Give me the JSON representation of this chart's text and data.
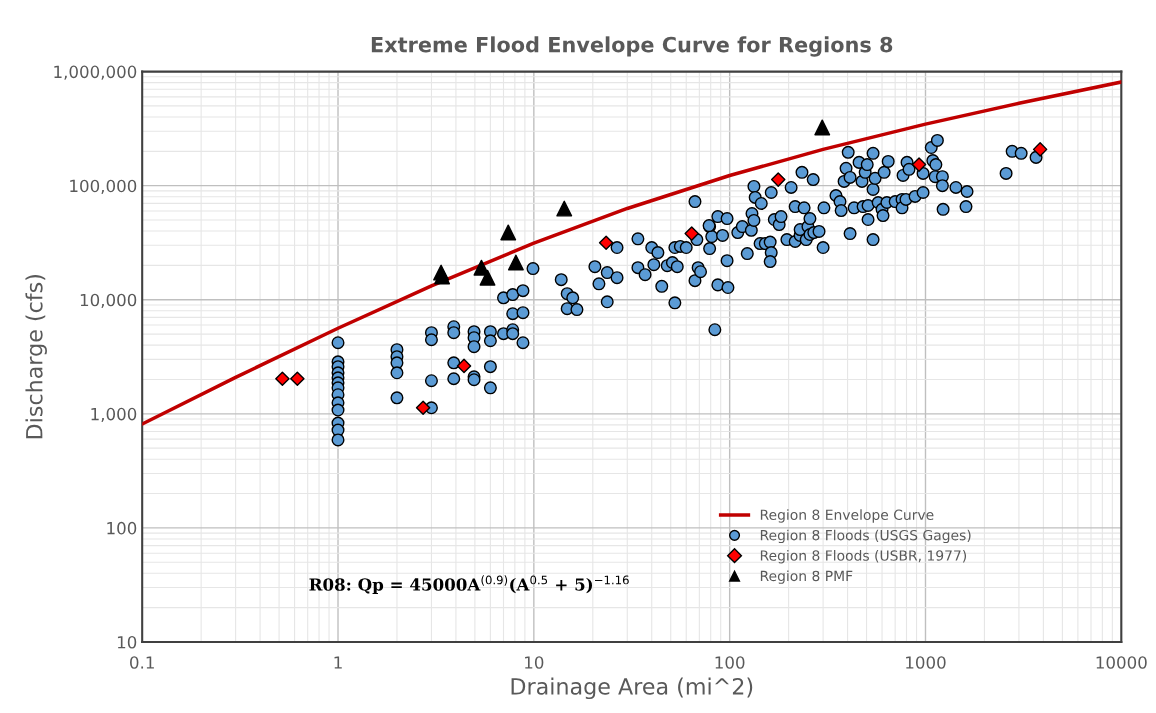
{
  "chart_data": {
    "type": "scatter",
    "title": "Extreme Flood Envelope Curve for Regions 8",
    "xlabel": "Drainage Area (mi^2)",
    "ylabel": "Discharge (cfs)",
    "log": "xy",
    "grid": true,
    "legend": "bottom right",
    "xlim": [
      0.1,
      10000
    ],
    "xticks": [
      0.1,
      1,
      10,
      100,
      1000,
      10000
    ],
    "ylim": [
      10,
      1000000
    ],
    "yticks": [
      {
        "value": 10,
        "label": "10"
      },
      {
        "value": 100,
        "label": "100"
      },
      {
        "value": 1000,
        "label": "1,000"
      },
      {
        "value": 10000,
        "label": "10,000"
      },
      {
        "value": 100000,
        "label": "100,000"
      },
      {
        "value": 1000000,
        "label": "1,000,000"
      }
    ],
    "annotations": [
      "R08: Qp = 45000A$^{(0.9)}$(A$^{0.5}$ + 5)$^{−1.16}$"
    ],
    "series": [
      {
        "name": "Region 8 Envelope Curve",
        "type": "line",
        "color": "#c00000",
        "marker": "none",
        "line_style": "solid",
        "x": [
          0.1,
          0.3,
          1,
          3,
          10,
          30,
          100,
          300,
          1000,
          3000,
          10000
        ],
        "values": [
          814,
          2089,
          5630,
          13245,
          31310,
          63086,
          122750,
          207970,
          346200,
          527400,
          810500
        ]
      },
      {
        "name": "Region 8 Floods (USGS Gages)",
        "type": "scatter",
        "color": "#5b9bd5",
        "marker": "circle",
        "x": [
          1,
          1,
          1,
          1,
          1,
          1,
          1,
          1,
          1,
          1,
          1,
          1,
          1,
          2,
          2,
          2,
          2,
          2,
          3,
          3,
          3,
          3,
          3.9,
          3.9,
          3.9,
          3.9,
          4.95,
          4.95,
          4.95,
          4.95,
          4.95,
          6,
          6,
          6,
          6,
          7,
          7,
          7.8,
          7.8,
          7.8,
          7.8,
          8.8,
          8.8,
          8.8,
          9.9,
          13.8,
          14.8,
          15.8,
          14.8,
          16.6,
          20.5,
          21.5,
          23.7,
          23.7,
          26.6,
          26.6,
          34,
          34,
          37,
          40,
          43,
          41,
          45,
          48,
          51,
          52.5,
          52.5,
          54,
          56,
          60,
          66.5,
          66.5,
          68,
          69,
          71,
          79,
          79,
          81,
          84,
          87,
          87,
          92,
          78.5,
          97,
          97,
          98,
          110,
          116,
          123,
          129,
          130,
          133,
          133,
          135,
          145,
          143,
          152,
          161,
          163,
          161,
          163,
          169,
          179,
          183,
          196,
          206,
          216,
          216,
          229,
          234,
          240,
          229,
          246,
          251,
          257,
          257,
          267,
          269,
          286,
          300,
          303,
          349,
          366,
          371,
          384,
          393,
          403,
          412,
          412,
          432,
          458,
          474,
          480,
          492,
          504,
          509,
          509,
          540,
          540,
          540,
          553,
          573,
          600,
          607,
          615,
          645,
          635,
          700,
          759,
          759,
          768,
          795,
          805,
          824,
          885,
          972,
          972,
          1070,
          1150,
          1090,
          1130,
          1120,
          1220,
          1220,
          1230,
          1430,
          1630,
          1610,
          2580,
          2770,
          3080,
          3670
        ],
        "values": [
          4200,
          2860,
          2590,
          2290,
          2070,
          1870,
          1690,
          1470,
          1250,
          1080,
          830,
          720,
          590,
          3650,
          3170,
          2800,
          2290,
          1380,
          5140,
          4460,
          1950,
          1130,
          5800,
          5140,
          2800,
          2030,
          5250,
          4650,
          3880,
          2110,
          1990,
          5250,
          4370,
          2590,
          1690,
          10400,
          5040,
          11100,
          7540,
          5460,
          5040,
          12000,
          7700,
          4200,
          18750,
          15000,
          11300,
          10400,
          8350,
          8200,
          19500,
          13800,
          17300,
          9600,
          28700,
          15600,
          34200,
          19100,
          16600,
          28700,
          25900,
          20300,
          13100,
          19900,
          21200,
          28700,
          9400,
          19500,
          29300,
          28700,
          14700,
          72600,
          33700,
          19100,
          17600,
          43800,
          28100,
          35800,
          5460,
          53600,
          13500,
          36600,
          44700,
          51500,
          22000,
          12800,
          38800,
          43800,
          25400,
          40600,
          57000,
          49600,
          98400,
          78800,
          69800,
          31100,
          31100,
          32000,
          25900,
          21600,
          87100,
          50500,
          45600,
          53600,
          33700,
          96400,
          65600,
          32400,
          36600,
          131000,
          64000,
          41200,
          33700,
          43800,
          51500,
          37300,
          113000,
          38800,
          39700,
          28700,
          64000,
          82000,
          72600,
          60500,
          109000,
          142000,
          196000,
          118000,
          38000,
          64000,
          160000,
          109000,
          65600,
          131000,
          153000,
          50500,
          67000,
          92700,
          192000,
          33700,
          116000,
          71200,
          62000,
          54700,
          131000,
          163000,
          71200,
          72600,
          75700,
          64000,
          123000,
          75700,
          160000,
          139000,
          80400,
          87100,
          128000,
          216000,
          249000,
          166000,
          153000,
          120000,
          120000,
          100000,
          62000,
          96400,
          88900,
          65600,
          128000,
          200000,
          192000,
          177000
        ]
      },
      {
        "name": "Region 8 Floods (USBR, 1977)",
        "type": "scatter",
        "color": "#ff0000",
        "marker": "diamond",
        "x": [
          0.52,
          0.62,
          2.72,
          4.4,
          23.4,
          64,
          177,
          927,
          3850
        ],
        "values": [
          2030,
          2030,
          1130,
          2630,
          31600,
          38000,
          113000,
          153000,
          208000
        ]
      },
      {
        "name": "Region 8 PMF",
        "type": "scatter",
        "color": "#000000",
        "marker": "triangle",
        "x": [
          3.36,
          3.4,
          5.4,
          5.8,
          7.4,
          8.1,
          14.3,
          297
        ],
        "values": [
          17300,
          16000,
          19100,
          15600,
          38900,
          21200,
          63000,
          324000
        ]
      }
    ]
  }
}
